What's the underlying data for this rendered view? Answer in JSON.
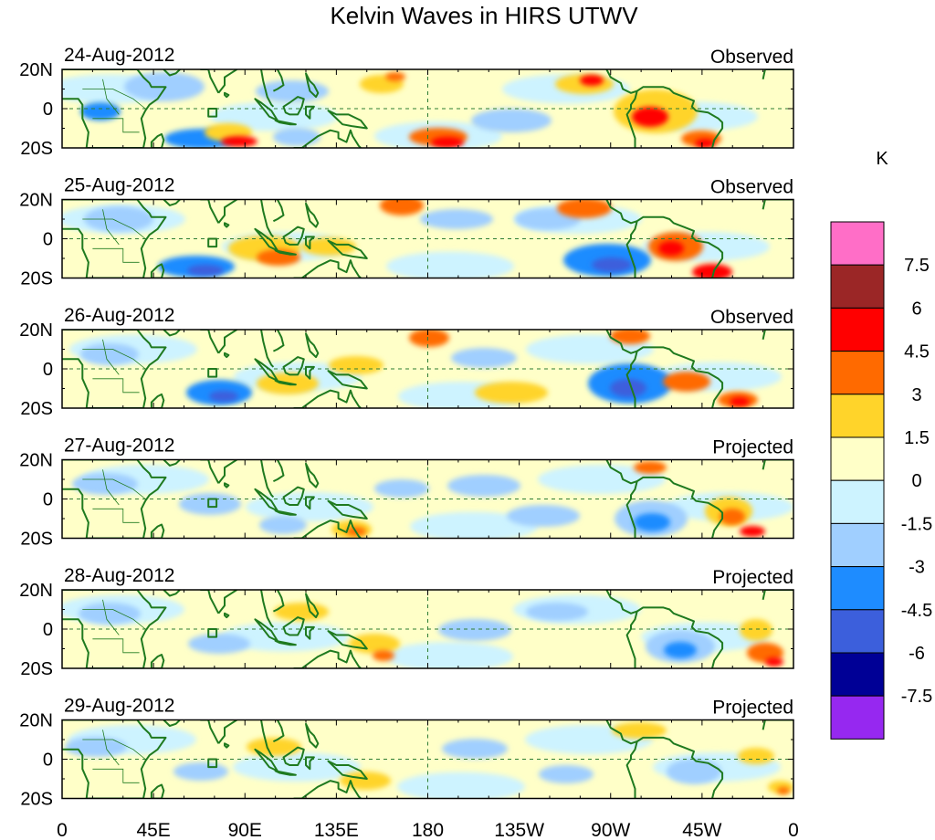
{
  "chart_data": {
    "type": "heatmap",
    "title": "Kelvin Waves in HIRS UTWV",
    "colorbar": {
      "unit": "K",
      "tick_labels": [
        "7.5",
        "6",
        "4.5",
        "3",
        "1.5",
        "0",
        "-1.5",
        "-3",
        "-4.5",
        "-6",
        "-7.5"
      ],
      "colors": [
        "#ff6ec7",
        "#9b2626",
        "#ff0000",
        "#ff6a00",
        "#ffd42a",
        "#ffffc8",
        "#cdf3ff",
        "#a0cfff",
        "#1e8cff",
        "#3c5fdc",
        "#000096",
        "#9628f0"
      ]
    },
    "x_axis": {
      "tick_labels": [
        "0",
        "45E",
        "90E",
        "135E",
        "180",
        "135W",
        "90W",
        "45W",
        "0"
      ],
      "range_lon": [
        0,
        360
      ]
    },
    "y_axis": {
      "tick_labels": [
        "20N",
        "0",
        "20S"
      ],
      "range_lat": [
        -20,
        20
      ]
    },
    "panels": [
      {
        "date": "24-Aug-2012",
        "label": "Observed"
      },
      {
        "date": "25-Aug-2012",
        "label": "Observed"
      },
      {
        "date": "26-Aug-2012",
        "label": "Observed"
      },
      {
        "date": "27-Aug-2012",
        "label": "Projected"
      },
      {
        "date": "28-Aug-2012",
        "label": "Projected"
      },
      {
        "date": "29-Aug-2012",
        "label": "Projected"
      }
    ]
  }
}
